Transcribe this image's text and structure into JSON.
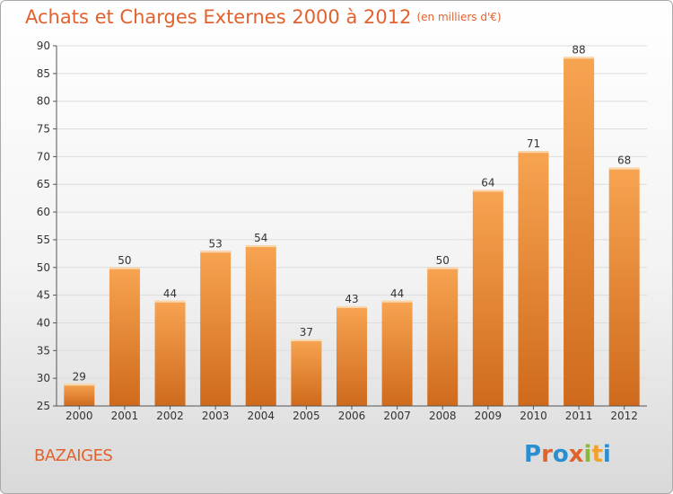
{
  "title": "Achats et Charges Externes 2000 à 2012",
  "subtitle": "(en milliers d'€)",
  "commune": "BAZAIGES",
  "logo": {
    "text": "Proxiti",
    "colors": [
      "#2a8fd0",
      "#e2622e",
      "#2a8fd0",
      "#e2622e",
      "#8cb83a",
      "#f2a12c",
      "#2a8fd0"
    ]
  },
  "colors": {
    "bar_light": "#f7a451",
    "bar_dark": "#cf6a1c",
    "title": "#e2622e"
  },
  "chart_data": {
    "type": "bar",
    "title": "Achats et Charges Externes 2000 à 2012",
    "categories": [
      "2000",
      "2001",
      "2002",
      "2003",
      "2004",
      "2005",
      "2006",
      "2007",
      "2008",
      "2009",
      "2010",
      "2011",
      "2012"
    ],
    "values": [
      29,
      50,
      44,
      53,
      54,
      37,
      43,
      44,
      50,
      64,
      71,
      88,
      68
    ],
    "ylim": [
      25,
      90
    ],
    "yticks": [
      25,
      30,
      35,
      40,
      45,
      50,
      55,
      60,
      65,
      70,
      75,
      80,
      85,
      90
    ],
    "grid": true
  }
}
